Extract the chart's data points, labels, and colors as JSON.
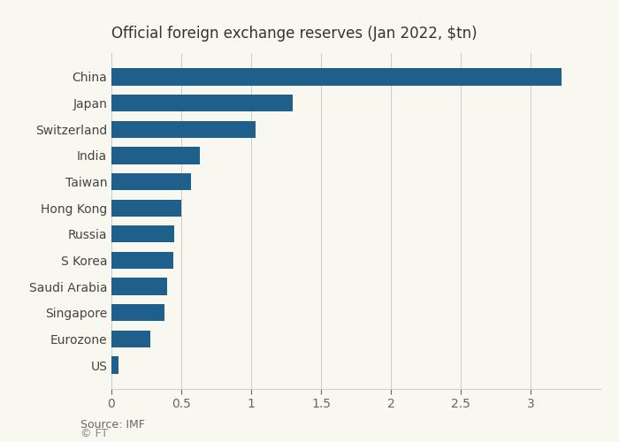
{
  "title": "Official foreign exchange reserves (Jan 2022, $tn)",
  "source": "Source: IMF",
  "footer": "© FT",
  "categories": [
    "China",
    "Japan",
    "Switzerland",
    "India",
    "Taiwan",
    "Hong Kong",
    "Russia",
    "S Korea",
    "Saudi Arabia",
    "Singapore",
    "Eurozone",
    "US"
  ],
  "values": [
    3.22,
    1.3,
    1.03,
    0.63,
    0.57,
    0.5,
    0.45,
    0.44,
    0.4,
    0.38,
    0.28,
    0.05
  ],
  "bar_color": "#1f5f8b",
  "background_color": "#f8f8f0",
  "xlim": [
    0,
    3.5
  ],
  "xticks": [
    0,
    0.5,
    1.0,
    1.5,
    2.0,
    2.5,
    3.0
  ],
  "title_fontsize": 12,
  "label_fontsize": 10,
  "tick_fontsize": 10,
  "source_fontsize": 9
}
